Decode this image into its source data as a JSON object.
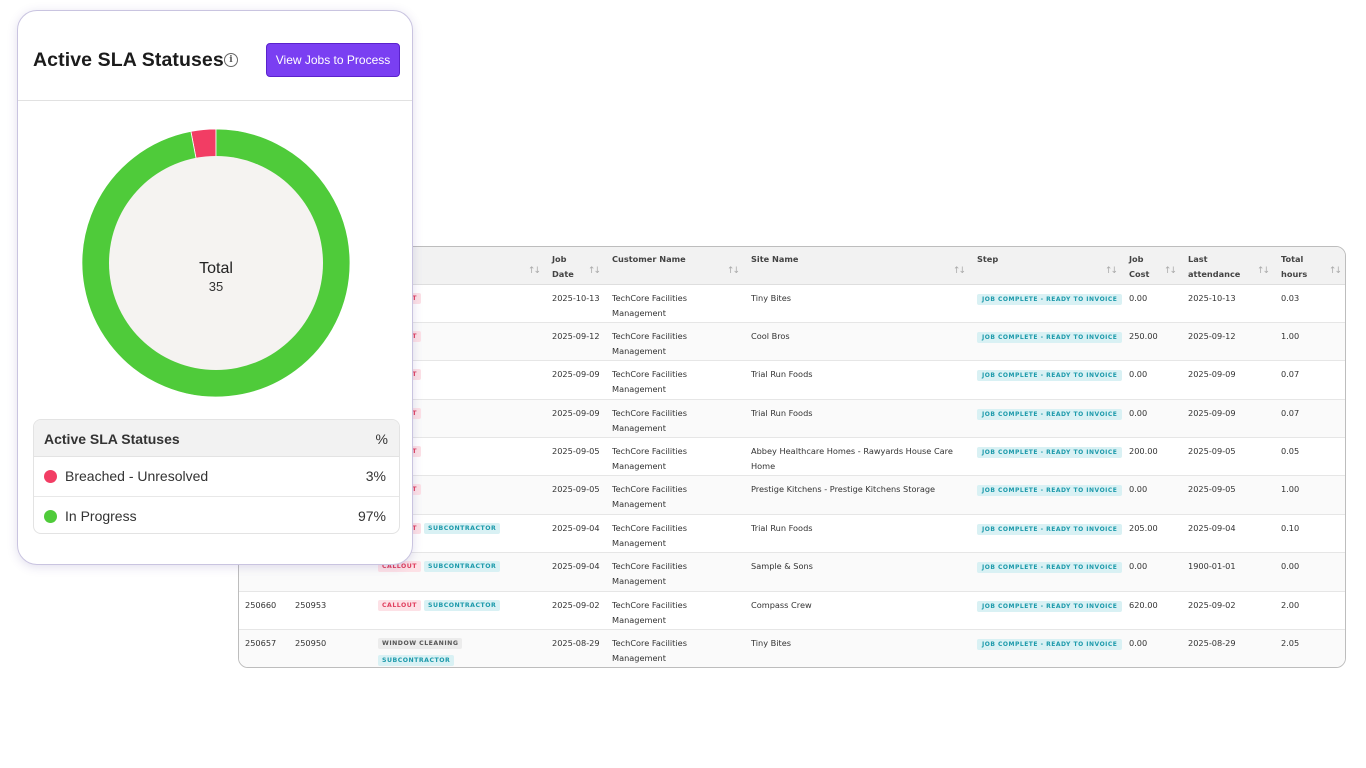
{
  "sla_card": {
    "title": "Active SLA Statuses",
    "info_icon": "info-icon",
    "view_button": "View Jobs to Process",
    "total_label": "Total",
    "total_value": "35",
    "legend": {
      "header_label": "Active SLA Statuses",
      "header_pct": "%",
      "items": [
        {
          "label": "Breached - Unresolved",
          "value": "3%",
          "color": "#f23d64"
        },
        {
          "label": "In Progress",
          "value": "97%",
          "color": "#4fcb3a"
        }
      ]
    }
  },
  "chart_data": {
    "type": "pie",
    "variant": "donut",
    "categories": [
      "Breached - Unresolved",
      "In Progress"
    ],
    "values": [
      3,
      97
    ],
    "colors": [
      "#f23d64",
      "#4fcb3a"
    ],
    "center_label": "Total",
    "center_value": 35
  },
  "jobs_table": {
    "columns": [
      {
        "label": "",
        "sortable": true
      },
      {
        "label": "Job Date",
        "sortable": true
      },
      {
        "label": "Customer Name",
        "sortable": true
      },
      {
        "label": "Site Name",
        "sortable": true
      },
      {
        "label": "Step",
        "sortable": true
      },
      {
        "label": "Job Cost",
        "sortable": true
      },
      {
        "label": "Last attendance",
        "sortable": true
      },
      {
        "label": "Total hours",
        "sortable": true
      }
    ],
    "rows": [
      {
        "id1": "",
        "id2": "",
        "tags": [
          "CALLOUT"
        ],
        "date": "2025-10-13",
        "customer": "TechCore Facilities Management",
        "site": "Tiny Bites",
        "step": "JOB COMPLETE - READY TO INVOICE",
        "cost": "0.00",
        "last": "2025-10-13",
        "hours": "0.03"
      },
      {
        "id1": "",
        "id2": "",
        "tags": [
          "CALLOUT"
        ],
        "date": "2025-09-12",
        "customer": "TechCore Facilities Management",
        "site": "Cool Bros",
        "step": "JOB COMPLETE - READY TO INVOICE",
        "cost": "250.00",
        "last": "2025-09-12",
        "hours": "1.00"
      },
      {
        "id1": "",
        "id2": "",
        "tags": [
          "CALLOUT"
        ],
        "date": "2025-09-09",
        "customer": "TechCore Facilities Management",
        "site": "Trial Run Foods",
        "step": "JOB COMPLETE - READY TO INVOICE",
        "cost": "0.00",
        "last": "2025-09-09",
        "hours": "0.07"
      },
      {
        "id1": "",
        "id2": "",
        "tags": [
          "CALLOUT"
        ],
        "date": "2025-09-09",
        "customer": "TechCore Facilities Management",
        "site": "Trial Run Foods",
        "step": "JOB COMPLETE - READY TO INVOICE",
        "cost": "0.00",
        "last": "2025-09-09",
        "hours": "0.07"
      },
      {
        "id1": "",
        "id2": "",
        "tags": [
          "CALLOUT"
        ],
        "date": "2025-09-05",
        "customer": "TechCore Facilities Management",
        "site": "Abbey Healthcare Homes - Rawyards House Care Home",
        "step": "JOB COMPLETE - READY TO INVOICE",
        "cost": "200.00",
        "last": "2025-09-05",
        "hours": "0.05"
      },
      {
        "id1": "",
        "id2": "",
        "tags": [
          "CALLOUT"
        ],
        "date": "2025-09-05",
        "customer": "TechCore Facilities Management",
        "site": "Prestige Kitchens - Prestige Kitchens Storage",
        "step": "JOB COMPLETE - READY TO INVOICE",
        "cost": "0.00",
        "last": "2025-09-05",
        "hours": "1.00"
      },
      {
        "id1": "",
        "id2": "",
        "tags": [
          "CALLOUT",
          "SUBCONTRACTOR"
        ],
        "date": "2025-09-04",
        "customer": "TechCore Facilities Management",
        "site": "Trial Run Foods",
        "step": "JOB COMPLETE - READY TO INVOICE",
        "cost": "205.00",
        "last": "2025-09-04",
        "hours": "0.10"
      },
      {
        "id1": "",
        "id2": "",
        "tags": [
          "CALLOUT",
          "SUBCONTRACTOR"
        ],
        "date": "2025-09-04",
        "customer": "TechCore Facilities Management",
        "site": "Sample & Sons",
        "step": "JOB COMPLETE - READY TO INVOICE",
        "cost": "0.00",
        "last": "1900-01-01",
        "hours": "0.00"
      },
      {
        "id1": "250660",
        "id2": "250953",
        "tags": [
          "CALLOUT",
          "SUBCONTRACTOR"
        ],
        "date": "2025-09-02",
        "customer": "TechCore Facilities Management",
        "site": "Compass Crew",
        "step": "JOB COMPLETE - READY TO INVOICE",
        "cost": "620.00",
        "last": "2025-09-02",
        "hours": "2.00"
      },
      {
        "id1": "250657",
        "id2": "250950",
        "tags": [
          "WINDOW CLEANING",
          "SUBCONTRACTOR"
        ],
        "date": "2025-08-29",
        "customer": "TechCore Facilities Management",
        "site": "Tiny Bites",
        "step": "JOB COMPLETE - READY TO INVOICE",
        "cost": "0.00",
        "last": "2025-08-29",
        "hours": "2.05"
      }
    ]
  }
}
